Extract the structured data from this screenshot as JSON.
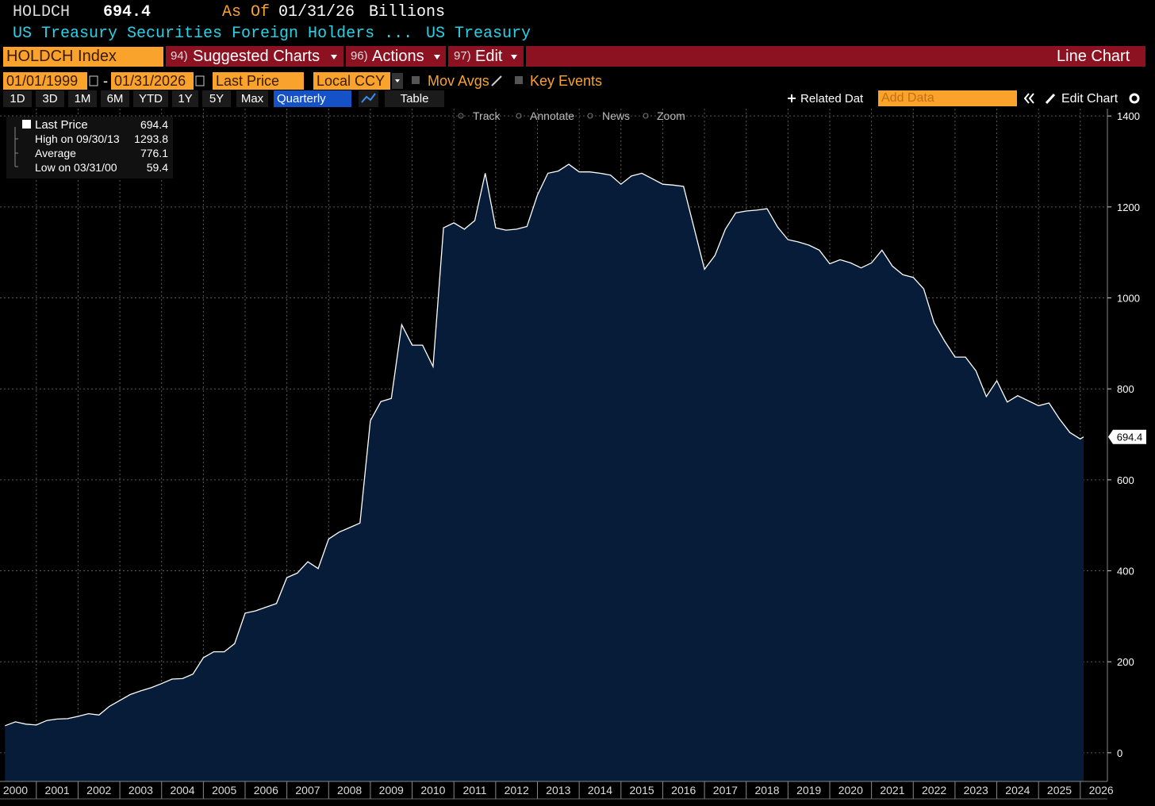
{
  "header": {
    "ticker": "HOLDCH",
    "price": "694.4",
    "as_of_label": "As Of",
    "as_of_date": "01/31/26",
    "units": "Billions",
    "description": "US Treasury Securities Foreign Holders ...",
    "source": "US Treasury"
  },
  "toolbar": {
    "security": "HOLDCH Index",
    "menus": [
      "94)",
      "Suggested Charts",
      "96)",
      "Actions",
      "97)",
      "Edit"
    ],
    "chart_type": "Line Chart",
    "start_date": "01/01/1999",
    "end_date": "01/31/2026",
    "date_separator": "-",
    "field": "Last Price",
    "currency": "Local CCY",
    "options": [
      "Mov Avgs",
      "Key Events"
    ],
    "periods": [
      "1D",
      "3D",
      "1M",
      "6M",
      "YTD",
      "1Y",
      "5Y",
      "Max"
    ],
    "frequency": "Quarterly",
    "table": "Table",
    "related": "Related Dat",
    "add_data": "Add Data",
    "edit_chart": "Edit Chart",
    "tools": [
      "Track",
      "Annotate",
      "News",
      "Zoom"
    ]
  },
  "chart_data": {
    "type": "area",
    "grid": true,
    "fill": "#061c38",
    "stats": [
      {
        "label": "Last Price",
        "value": 694.4
      },
      {
        "label": "High on 09/30/13",
        "value": 1293.8
      },
      {
        "label": "Average",
        "value": 776.1
      },
      {
        "label": "Low on 03/31/00",
        "value": 59.4
      }
    ],
    "x": [
      2000.25,
      2000.5,
      2000.75,
      2001,
      2001.25,
      2001.5,
      2001.75,
      2002,
      2002.25,
      2002.5,
      2002.75,
      2003,
      2003.25,
      2003.5,
      2003.75,
      2004,
      2004.25,
      2004.5,
      2004.75,
      2005,
      2005.25,
      2005.5,
      2005.75,
      2006,
      2006.25,
      2006.5,
      2006.75,
      2007,
      2007.25,
      2007.5,
      2007.75,
      2008,
      2008.25,
      2008.5,
      2008.75,
      2009,
      2009.25,
      2009.5,
      2009.75,
      2010,
      2010.25,
      2010.5,
      2010.75,
      2011,
      2011.25,
      2011.5,
      2011.75,
      2012,
      2012.25,
      2012.5,
      2012.75,
      2013,
      2013.25,
      2013.5,
      2013.75,
      2014,
      2014.25,
      2014.5,
      2014.75,
      2015,
      2015.25,
      2015.5,
      2015.75,
      2016,
      2016.25,
      2016.5,
      2016.75,
      2017,
      2017.25,
      2017.5,
      2017.75,
      2018,
      2018.25,
      2018.5,
      2018.75,
      2019,
      2019.25,
      2019.5,
      2019.75,
      2020,
      2020.25,
      2020.5,
      2020.75,
      2021,
      2021.25,
      2021.5,
      2021.75,
      2022,
      2022.25,
      2022.5,
      2022.75,
      2023,
      2023.25,
      2023.5,
      2023.75,
      2024,
      2024.25,
      2024.5,
      2024.75,
      2025,
      2025.25,
      2025.5,
      2025.75,
      2026,
      2026.08
    ],
    "series": [
      {
        "name": "Last Price",
        "color": "#ffffff",
        "values": [
          59.4,
          68,
          63,
          61,
          71,
          74,
          75,
          80,
          86,
          83,
          102,
          115,
          128,
          136,
          143,
          152,
          162,
          163,
          173,
          209,
          222,
          222,
          240,
          307,
          312,
          320,
          328,
          385,
          395,
          420,
          405,
          470,
          485,
          495,
          505,
          730,
          772,
          779,
          941,
          896,
          896,
          849,
          1154,
          1165,
          1151,
          1170,
          1274,
          1154,
          1149,
          1151,
          1157,
          1226,
          1274,
          1279,
          1293.8,
          1277,
          1277,
          1274,
          1270,
          1250,
          1268,
          1274,
          1262,
          1250,
          1248,
          1245,
          1154,
          1063,
          1093,
          1151,
          1187,
          1191,
          1193,
          1196,
          1156,
          1128,
          1123,
          1116,
          1105,
          1075,
          1084,
          1077,
          1066,
          1077,
          1105,
          1070,
          1051,
          1045,
          1020,
          945,
          905,
          870,
          870,
          840,
          783,
          818,
          771,
          785,
          774,
          763,
          769,
          734,
          704,
          690,
          694.4
        ]
      }
    ],
    "xlim": [
      2000.13,
      2026.63
    ],
    "xticks": [
      2000,
      2001,
      2002,
      2003,
      2004,
      2005,
      2006,
      2007,
      2008,
      2009,
      2010,
      2011,
      2012,
      2013,
      2014,
      2015,
      2016,
      2017,
      2018,
      2019,
      2020,
      2021,
      2022,
      2023,
      2024,
      2025,
      2026
    ],
    "ylim": [
      -63,
      1416
    ],
    "yticks": [
      0,
      200,
      400,
      600,
      800,
      1000,
      1200,
      1400
    ]
  }
}
